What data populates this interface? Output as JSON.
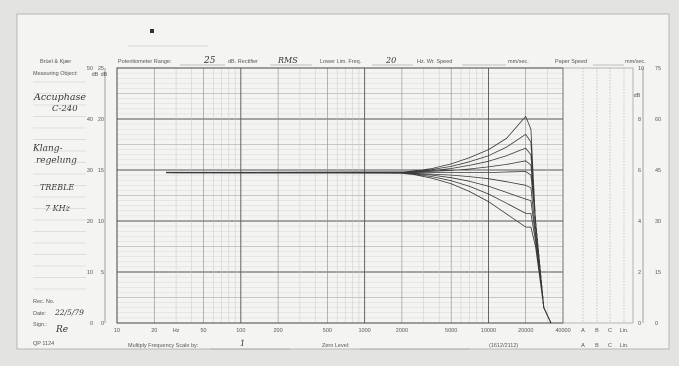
{
  "header": {
    "brand": "Brüel & Kjær",
    "potentiometer_range_label": "Potentiometer Range:",
    "potentiometer_range_value": "25",
    "rectifier_label": "dB. Rectifier",
    "rectifier_value": "RMS",
    "lower_lim_freq_label": "Lower Lim. Freq.",
    "lower_lim_freq_value": "20",
    "writing_speed_label": "Hz. Wr. Speed",
    "writing_speed_unit": "mm/sec.",
    "paper_speed_label": "Paper Speed",
    "paper_speed_unit": "mm/sec."
  },
  "sidebar": {
    "measuring_object_label": "Measuring Object:",
    "object_line1": "Accuphase",
    "object_line2": "C-240",
    "note_line1": "Klang-",
    "note_line2": "regelung",
    "note_line3": "TREBLE",
    "note_line4": "7 KHz",
    "rec_no_label": "Rec. No.",
    "date_label": "Date:",
    "date_value": "22/5/79",
    "sign_label": "Sign.:",
    "sign_value": "Re"
  },
  "footer": {
    "form_code": "QP 1124",
    "multiply_label": "Multiply Frequency Scale by:",
    "multiply_value": "1",
    "zero_level_label": "Zero Level:",
    "filter_code": "(1612/2112)",
    "weighting_labels": [
      "A",
      "B",
      "C",
      "Lin."
    ]
  },
  "chart_data": {
    "type": "line",
    "x_scale": "log",
    "xlim": [
      10,
      40000
    ],
    "x_tick_labels": [
      "10",
      "20",
      "Hz",
      "50",
      "100",
      "200",
      "500",
      "1000",
      "2000",
      "5000",
      "10000",
      "20000",
      "40000"
    ],
    "weighting_tick_labels": [
      "A",
      "B",
      "C",
      "Lin."
    ],
    "ylim": [
      0,
      50
    ],
    "left_axis_labels": [
      "50",
      "40",
      "30",
      "20",
      "10",
      "0"
    ],
    "left_axis_inner_labels": [
      "25",
      "20",
      "15",
      "10",
      "5",
      "0"
    ],
    "right_axis_labels": [
      "75",
      "60",
      "45",
      "30",
      "15",
      "0"
    ],
    "right_axis_inner_labels": [
      "10",
      "8",
      "6",
      "4",
      "2",
      "0"
    ],
    "unit_labels": [
      "dB",
      "dB",
      "dB"
    ],
    "grid": true,
    "baseline_level": 29.5,
    "series": [
      {
        "x": [
          25,
          2000,
          2500,
          3500,
          5000,
          7000,
          10000,
          14000,
          20000,
          22000,
          24000,
          28000,
          32000
        ],
        "y": [
          29.5,
          29.6,
          29.8,
          30.3,
          31.2,
          32.4,
          34.0,
          36.2,
          40.5,
          38.0,
          20.0,
          3.0,
          0
        ]
      },
      {
        "x": [
          25,
          2000,
          2500,
          3500,
          5000,
          7000,
          10000,
          14000,
          20000,
          22000,
          24000,
          28000,
          32000
        ],
        "y": [
          29.5,
          29.6,
          29.7,
          30.1,
          30.7,
          31.6,
          32.8,
          34.5,
          37.0,
          35.5,
          20.0,
          3.0,
          0
        ]
      },
      {
        "x": [
          25,
          2000,
          2500,
          3500,
          5000,
          7000,
          10000,
          14000,
          20000,
          22000,
          24000,
          28000,
          32000
        ],
        "y": [
          29.5,
          29.55,
          29.65,
          29.9,
          30.3,
          30.9,
          31.7,
          32.8,
          34.3,
          33.0,
          20.0,
          3.0,
          0
        ]
      },
      {
        "x": [
          25,
          2000,
          2500,
          3500,
          5000,
          7000,
          10000,
          14000,
          20000,
          22000,
          24000,
          28000,
          32000
        ],
        "y": [
          29.5,
          29.55,
          29.6,
          29.75,
          29.9,
          30.2,
          30.6,
          31.1,
          31.8,
          31.0,
          20.0,
          3.0,
          0
        ]
      },
      {
        "x": [
          25,
          2000,
          2500,
          3500,
          5000,
          7000,
          10000,
          14000,
          20000,
          22000,
          24000,
          28000,
          32000
        ],
        "y": [
          29.5,
          29.5,
          29.5,
          29.5,
          29.5,
          29.5,
          29.5,
          29.6,
          29.7,
          29.0,
          20.0,
          3.0,
          0
        ]
      },
      {
        "x": [
          25,
          2000,
          2500,
          3500,
          5000,
          7000,
          10000,
          14000,
          20000,
          22000,
          24000,
          28000,
          32000
        ],
        "y": [
          29.5,
          29.45,
          29.4,
          29.2,
          29.0,
          28.7,
          28.3,
          27.7,
          27.0,
          26.5,
          18.0,
          3.0,
          0
        ]
      },
      {
        "x": [
          25,
          2000,
          2500,
          3500,
          5000,
          7000,
          10000,
          14000,
          20000,
          22000,
          24000,
          28000,
          32000
        ],
        "y": [
          29.5,
          29.45,
          29.3,
          29.0,
          28.5,
          27.8,
          26.8,
          25.6,
          24.3,
          24.0,
          17.0,
          3.0,
          0
        ]
      },
      {
        "x": [
          25,
          2000,
          2500,
          3500,
          5000,
          7000,
          10000,
          14000,
          20000,
          22000,
          24000,
          28000,
          32000
        ],
        "y": [
          29.5,
          29.4,
          29.2,
          28.7,
          27.9,
          26.8,
          25.3,
          23.5,
          21.5,
          21.5,
          16.0,
          3.0,
          0
        ]
      },
      {
        "x": [
          25,
          2000,
          2500,
          3500,
          5000,
          7000,
          10000,
          14000,
          20000,
          22000,
          24000,
          28000,
          32000
        ],
        "y": [
          29.5,
          29.35,
          29.1,
          28.4,
          27.3,
          25.8,
          23.8,
          21.4,
          18.8,
          18.8,
          15.0,
          3.0,
          0
        ]
      }
    ]
  }
}
